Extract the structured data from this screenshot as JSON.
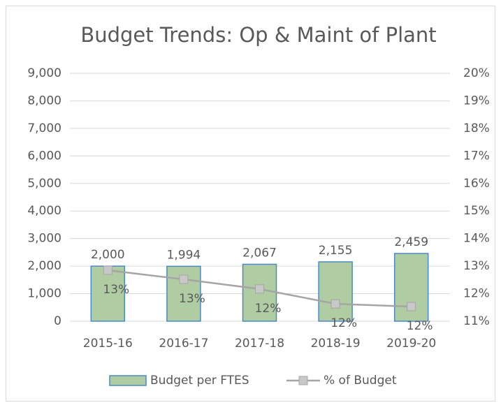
{
  "chart_data": {
    "type": "combo",
    "title": "Budget Trends: Op & Maint of Plant",
    "categories": [
      "2015-16",
      "2016-17",
      "2017-18",
      "2018-19",
      "2019-20"
    ],
    "series": [
      {
        "name": "Budget per FTES",
        "type": "bar",
        "color": "#b0cca3",
        "edge_color": "#4a8ac4",
        "values": [
          2000,
          1994,
          2067,
          2155,
          2459
        ],
        "value_labels": [
          "2,000",
          "1,994",
          "2,067",
          "2,155",
          "2,459"
        ]
      },
      {
        "name": "% of Budget",
        "type": "line",
        "axis": "y2",
        "color": "#a5a5a5",
        "marker_color": "#c8c8c8",
        "values": [
          12.85,
          12.52,
          12.17,
          11.63,
          11.53
        ],
        "value_labels": [
          "13%",
          "13%",
          "12%",
          "12%",
          "12%"
        ]
      }
    ],
    "ylim": [
      0,
      9000
    ],
    "yticks": [
      0,
      {
        "value": 1000,
        "label": "1,000"
      },
      {
        "value": 2000,
        "label": "2,000"
      },
      {
        "value": 3000,
        "label": "3,000"
      },
      {
        "value": 4000,
        "label": "4,000"
      },
      {
        "value": 5000,
        "label": "5,000"
      },
      {
        "value": 6000,
        "label": "6,000"
      },
      {
        "value": 7000,
        "label": "7,000"
      },
      {
        "value": 8000,
        "label": "8,000"
      },
      {
        "value": 9000,
        "label": "9,000"
      }
    ],
    "y2lim": [
      11,
      20
    ],
    "y2ticks": [
      {
        "value": 11,
        "label": "11%"
      },
      {
        "value": 12,
        "label": "12%"
      },
      {
        "value": 13,
        "label": "13%"
      },
      {
        "value": 14,
        "label": "14%"
      },
      {
        "value": 15,
        "label": "15%"
      },
      {
        "value": 16,
        "label": "16%"
      },
      {
        "value": 17,
        "label": "17%"
      },
      {
        "value": 18,
        "label": "18%"
      },
      {
        "value": 19,
        "label": "19%"
      },
      {
        "value": 20,
        "label": "20%"
      }
    ],
    "grid": true,
    "legend": "bottom"
  }
}
